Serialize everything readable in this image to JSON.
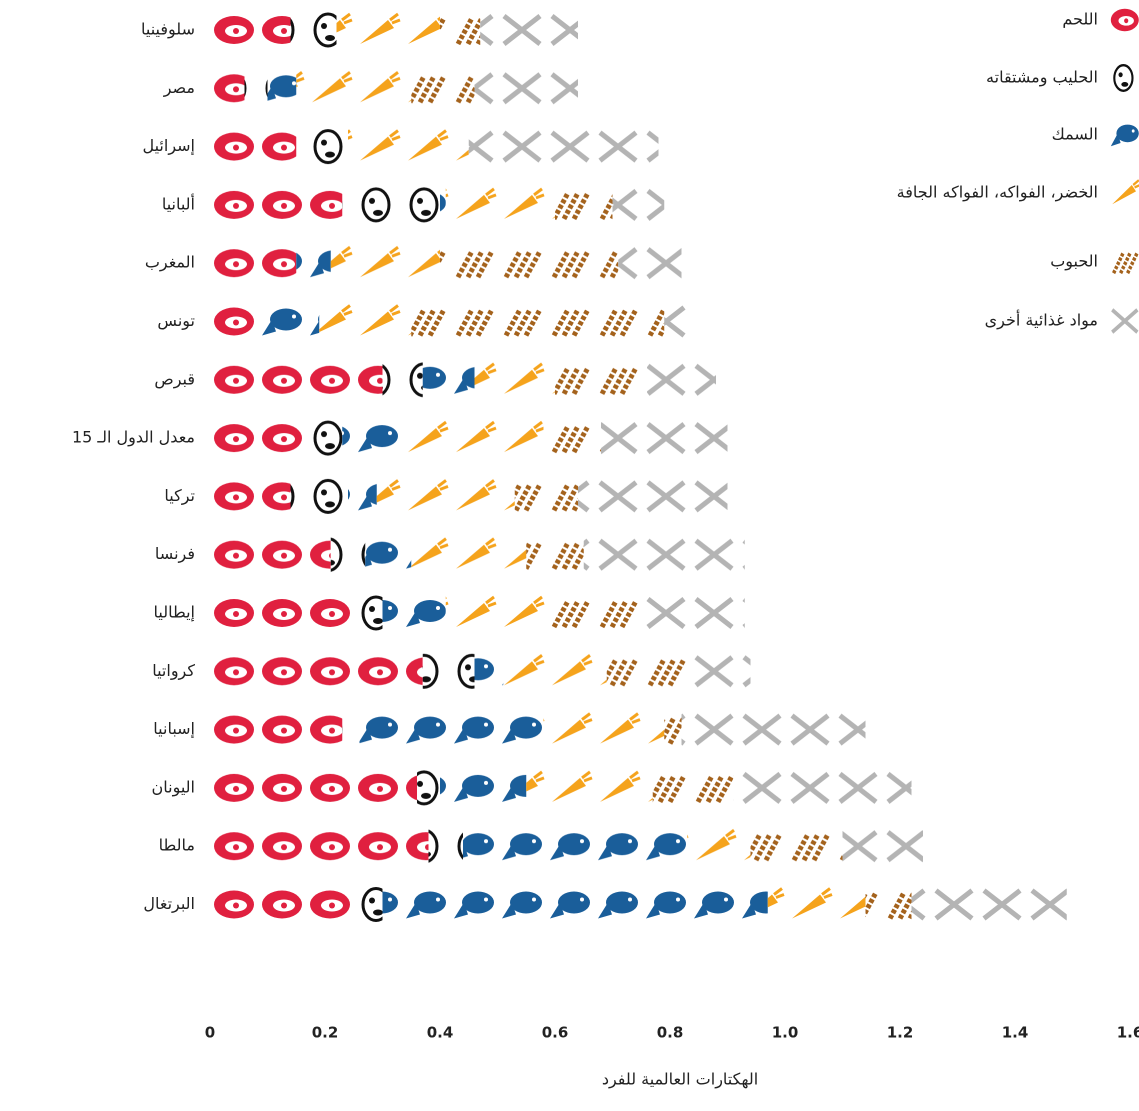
{
  "chart_data": {
    "type": "bar",
    "orientation": "horizontal",
    "stacked": true,
    "x_label": "الهكتارات العالمية للفرد",
    "categories": [
      "سلوفينيا",
      "مصر",
      "إسرائيل",
      "ألبانيا",
      "المغرب",
      "تونس",
      "قبرص",
      "معدل الدول الـ 15",
      "تركيا",
      "فرنسا",
      "إيطاليا",
      "كرواتيا",
      "إسبانيا",
      "اليونان",
      "مالطا",
      "البرتغال"
    ],
    "series": [
      {
        "name": "اللحم",
        "color": "#e0203f",
        "values": [
          0.14,
          0.06,
          0.15,
          0.23,
          0.15,
          0.09,
          0.3,
          0.17,
          0.14,
          0.21,
          0.25,
          0.37,
          0.23,
          0.36,
          0.38,
          0.25
        ]
      },
      {
        "name": "الحليب ومشتقاته",
        "color": "#111111",
        "values": [
          0.08,
          0.04,
          0.09,
          0.17,
          0,
          0,
          0.07,
          0.06,
          0.1,
          0.06,
          0.05,
          0.09,
          0.03,
          0.04,
          0.06,
          0.05
        ]
      },
      {
        "name": "السمك",
        "color": "#1a5e9a",
        "values": [
          0,
          0.05,
          0,
          0.01,
          0.06,
          0.1,
          0.09,
          0.11,
          0.05,
          0.08,
          0.11,
          0.05,
          0.32,
          0.15,
          0.39,
          0.67
        ]
      },
      {
        "name": "الخضر، الفواكه، الفواكه الجافة",
        "color": "#f5a31c",
        "values": [
          0.18,
          0.2,
          0.21,
          0.19,
          0.19,
          0.16,
          0.14,
          0.24,
          0.24,
          0.2,
          0.18,
          0.18,
          0.21,
          0.22,
          0.11,
          0.17
        ]
      },
      {
        "name": "الحبوب",
        "color": "#a4621c",
        "values": [
          0.07,
          0.11,
          0,
          0.1,
          0.31,
          0.44,
          0.16,
          0.1,
          0.11,
          0.1,
          0.16,
          0.15,
          0.03,
          0.14,
          0.16,
          0.08
        ]
      },
      {
        "name": "مواد غذائية أخرى",
        "color": "#b4b4b4",
        "values": [
          0.17,
          0.18,
          0.33,
          0.09,
          0.11,
          0.05,
          0.12,
          0.22,
          0.26,
          0.28,
          0.18,
          0.1,
          0.32,
          0.31,
          0.14,
          0.27
        ]
      }
    ],
    "xlim": [
      0,
      1.6
    ],
    "xticks": [
      0,
      0.2,
      0.4,
      0.6,
      0.8,
      {
        "value": 1,
        "label": "1.0"
      },
      1.2,
      1.4,
      1.6
    ],
    "legend": "top-right"
  }
}
